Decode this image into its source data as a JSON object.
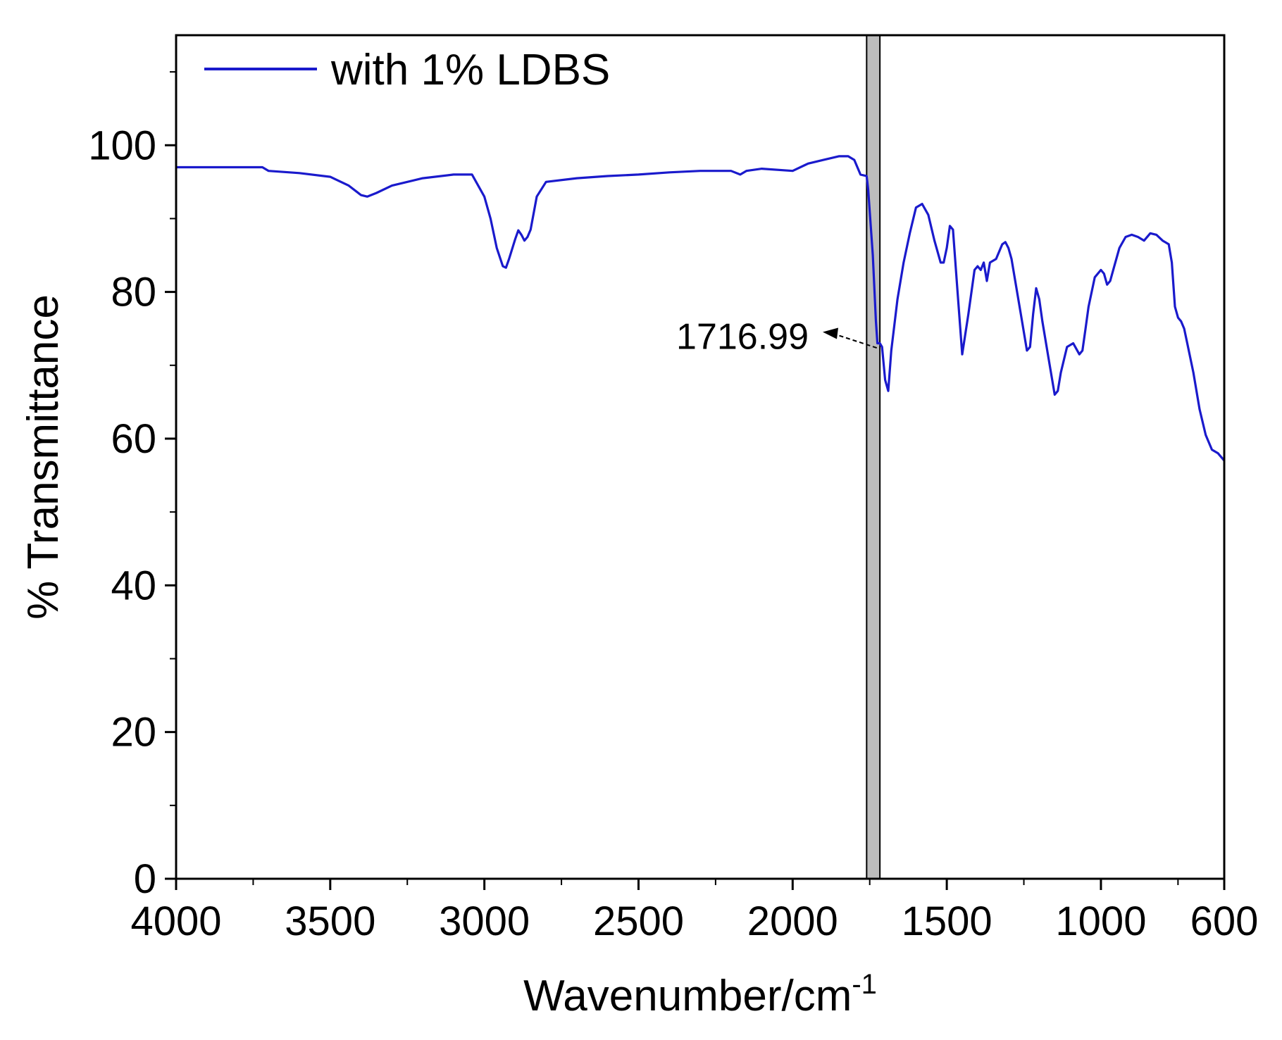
{
  "chart_data": {
    "type": "line",
    "title": "",
    "xlabel": "Wavenumber/cm",
    "xlabel_superscript": "-1",
    "ylabel": "% Transmittance",
    "xlim": [
      4000,
      600
    ],
    "ylim": [
      0,
      115
    ],
    "x_reversed": true,
    "xticks": [
      4000,
      3500,
      3000,
      2500,
      2000,
      1500,
      1000,
      600
    ],
    "yticks": [
      0,
      20,
      40,
      60,
      80,
      100
    ],
    "grid": false,
    "legend_position": "top-left",
    "colors": {
      "line": "#1a1acc",
      "band": "#bdbdbd"
    },
    "highlight_band": {
      "x_start": 1760,
      "x_end": 1717
    },
    "annotation": {
      "text": "1716.99",
      "x": 1716.99,
      "y": 73
    },
    "series": [
      {
        "name": "with 1% LDBS",
        "x": [
          4000,
          3900,
          3800,
          3720,
          3700,
          3600,
          3500,
          3440,
          3400,
          3380,
          3350,
          3300,
          3200,
          3100,
          3040,
          3000,
          2980,
          2960,
          2940,
          2930,
          2920,
          2900,
          2890,
          2880,
          2870,
          2860,
          2850,
          2830,
          2800,
          2700,
          2600,
          2500,
          2400,
          2300,
          2200,
          2170,
          2150,
          2100,
          2000,
          1950,
          1900,
          1850,
          1820,
          1800,
          1780,
          1760,
          1755,
          1745,
          1740,
          1730,
          1725,
          1717,
          1710,
          1700,
          1690,
          1680,
          1660,
          1640,
          1620,
          1600,
          1580,
          1560,
          1540,
          1520,
          1510,
          1500,
          1490,
          1480,
          1465,
          1450,
          1430,
          1410,
          1400,
          1390,
          1380,
          1370,
          1360,
          1340,
          1320,
          1310,
          1300,
          1290,
          1280,
          1260,
          1240,
          1230,
          1220,
          1210,
          1200,
          1190,
          1170,
          1150,
          1140,
          1130,
          1110,
          1090,
          1070,
          1060,
          1050,
          1040,
          1020,
          1000,
          990,
          980,
          970,
          960,
          940,
          920,
          900,
          880,
          860,
          840,
          820,
          800,
          780,
          770,
          760,
          750,
          740,
          730,
          720,
          700,
          680,
          660,
          640,
          620,
          600
        ],
        "y": [
          97,
          97,
          97,
          97,
          96.5,
          96.2,
          95.7,
          94.5,
          93.2,
          93,
          93.5,
          94.5,
          95.5,
          96,
          96,
          93,
          90,
          86,
          83.5,
          83.3,
          84.5,
          87.2,
          88.4,
          87.8,
          87,
          87.5,
          88.5,
          93,
          95,
          95.5,
          95.8,
          96,
          96.3,
          96.5,
          96.5,
          96,
          96.5,
          96.8,
          96.5,
          97.5,
          98,
          98.5,
          98.5,
          98,
          96,
          95.8,
          94,
          88,
          85,
          76,
          73,
          73,
          72.5,
          68,
          66.5,
          72,
          79,
          84,
          88,
          91.5,
          92,
          90.5,
          87,
          84,
          84,
          86,
          89,
          88.5,
          80,
          71.5,
          77,
          83,
          83.5,
          83,
          84,
          81.5,
          84,
          84.5,
          86.5,
          86.8,
          86,
          84.5,
          82,
          77,
          72,
          72.5,
          77,
          80.5,
          79,
          76,
          71,
          66,
          66.5,
          69,
          72.5,
          73,
          71.5,
          72,
          75,
          78,
          82,
          83,
          82.5,
          81,
          81.5,
          83,
          86,
          87.5,
          87.8,
          87.5,
          87,
          88,
          87.8,
          87,
          86.5,
          84,
          78,
          76.5,
          76,
          75,
          73,
          69,
          64,
          60.5,
          58.5,
          58,
          57
        ]
      }
    ]
  }
}
